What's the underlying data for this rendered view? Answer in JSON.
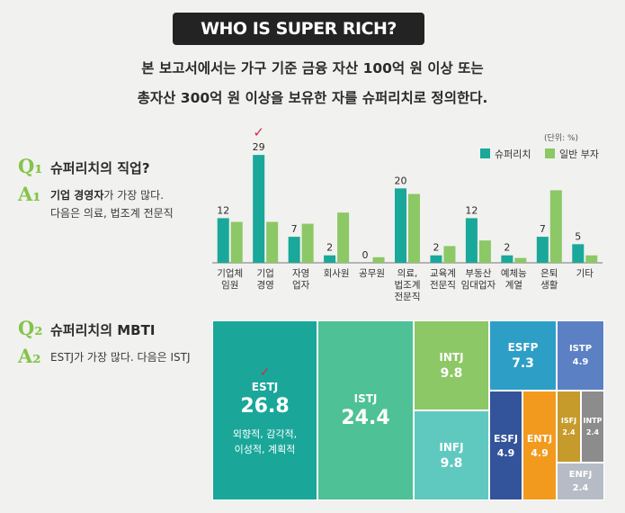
{
  "header": {
    "title": "WHO IS SUPER RICH?",
    "intro_line1": "본 보고서에서는 가구 기준 금융 자산 100억 원 이상 또는",
    "intro_line2": "총자산 300억 원 이상을 보유한 자를 슈퍼리치로 정의한다."
  },
  "q1": {
    "q_mark": "Q₁",
    "question": "슈퍼리치의 직업?",
    "a_mark": "A₁",
    "answer_bold": "기업 경영자",
    "answer_rest": "가 가장 많다.",
    "answer_line2": "다음은 의료, 법조계 전문직"
  },
  "q2": {
    "q_mark": "Q₂",
    "question": "슈퍼리치의 MBTI",
    "a_mark": "A₂",
    "answer": "ESTJ가 가장 많다. 다음은 ISTJ"
  },
  "chart_data": [
    {
      "type": "bar",
      "unit_label": "(단위: %)",
      "categories": [
        [
          "기업체",
          "임원"
        ],
        [
          "기업",
          "경영"
        ],
        [
          "자영",
          "업자"
        ],
        [
          "회사원"
        ],
        [
          "공무원"
        ],
        [
          "의료,",
          "법조계",
          "전문직"
        ],
        [
          "교육계",
          "전문직"
        ],
        [
          "부동산",
          "임대업자"
        ],
        [
          "예체능",
          "계열"
        ],
        [
          "은퇴",
          "생활"
        ],
        [
          "기타"
        ]
      ],
      "series": [
        {
          "name": "슈퍼리치",
          "color": "#1aa89a",
          "values": [
            12,
            29,
            7,
            2,
            0,
            20,
            2,
            12,
            2,
            7,
            5
          ],
          "labeled": true
        },
        {
          "name": "일반 부자",
          "color": "#8cc866",
          "values": [
            11,
            11,
            10.5,
            13.5,
            1.5,
            18.5,
            4.5,
            6,
            1.3,
            19.5,
            2
          ]
        }
      ],
      "ylim": [
        0,
        30
      ],
      "highlight_category": 1,
      "highlight_mark": "✓",
      "legend_position": "top-right",
      "grid": false
    },
    {
      "type": "treemap",
      "items": [
        {
          "name": "ESTJ",
          "value": 26.8,
          "value_label": "26.8",
          "desc": [
            "외향적, 감각적,",
            "이성적, 계획적"
          ],
          "color": "#1aa79a",
          "check": "✓"
        },
        {
          "name": "ISTJ",
          "value": 24.4,
          "value_label": "24.4",
          "color": "#4ec196"
        },
        {
          "name": "INTJ",
          "value": 9.8,
          "value_label": "9.8",
          "color": "#8cc866"
        },
        {
          "name": "INFJ",
          "value": 9.8,
          "value_label": "9.8",
          "color": "#5fc9c0"
        },
        {
          "name": "ESFP",
          "value": 7.3,
          "value_label": "7.3",
          "color": "#2d9fc7"
        },
        {
          "name": "ISTP",
          "value": 4.9,
          "value_label": "4.9",
          "color": "#5b80c4"
        },
        {
          "name": "ESFJ",
          "value": 4.9,
          "value_label": "4.9",
          "color": "#33549b"
        },
        {
          "name": "ENTJ",
          "value": 4.9,
          "value_label": "4.9",
          "color": "#f29a1e"
        },
        {
          "name": "ISFJ",
          "value": 2.4,
          "value_label": "2.4",
          "color": "#c79a2c"
        },
        {
          "name": "INTP",
          "value": 2.4,
          "value_label": "2.4",
          "color": "#8c8c8c"
        },
        {
          "name": "ENFJ",
          "value": 2.4,
          "value_label": "2.4",
          "color": "#b5bcc5"
        }
      ]
    }
  ]
}
